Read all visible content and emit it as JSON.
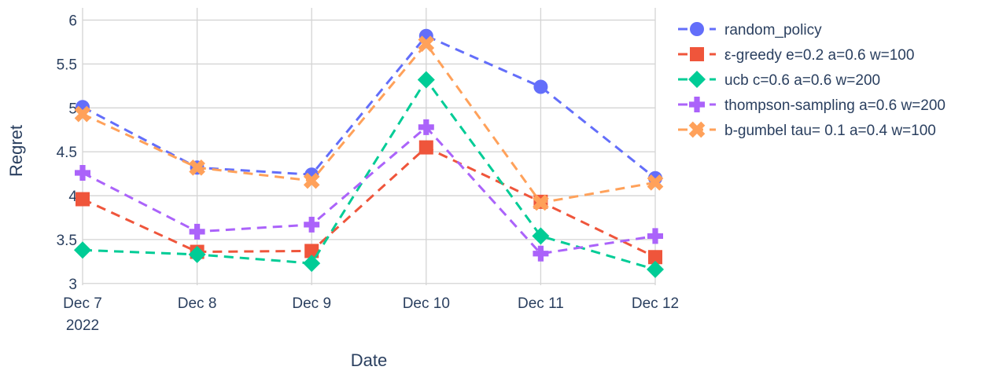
{
  "chart_data": {
    "type": "line",
    "xlabel": "Date",
    "ylabel": "Regret",
    "x": [
      "2022-12-07",
      "2022-12-08",
      "2022-12-09",
      "2022-12-10",
      "2022-12-11",
      "2022-12-12"
    ],
    "x_tick_labels": [
      "Dec 7",
      "Dec 8",
      "Dec 9",
      "Dec 10",
      "Dec 11",
      "Dec 12"
    ],
    "x_tick_year": "2022",
    "y_ticks": [
      "3",
      "3.5",
      "4",
      "4.5",
      "5",
      "5.5",
      "6"
    ],
    "ylim": [
      2.98,
      6.05
    ],
    "grid": true,
    "legend_position": "right",
    "series": [
      {
        "name": "random_policy",
        "color": "#636efa",
        "marker": "circle",
        "values": [
          5.01,
          4.32,
          4.24,
          5.82,
          5.24,
          4.2
        ]
      },
      {
        "name": "ε-greedy e=0.2 a=0.6 w=100",
        "color": "#ef553b",
        "marker": "square",
        "values": [
          3.96,
          3.36,
          3.37,
          4.55,
          3.93,
          3.3
        ]
      },
      {
        "name": "ucb c=0.6 a=0.6 w=200",
        "color": "#00cc96",
        "marker": "diamond",
        "values": [
          3.38,
          3.33,
          3.23,
          5.32,
          3.54,
          3.16
        ]
      },
      {
        "name": "thompson-sampling a=0.6 w=200",
        "color": "#ab63fa",
        "marker": "cross",
        "values": [
          4.26,
          3.59,
          3.67,
          4.78,
          3.34,
          3.54
        ]
      },
      {
        "name": "b-gumbel tau= 0.1 a=0.4 w=100",
        "color": "#ffa15a",
        "marker": "x",
        "values": [
          4.93,
          4.32,
          4.17,
          5.73,
          3.92,
          4.15
        ]
      }
    ]
  }
}
